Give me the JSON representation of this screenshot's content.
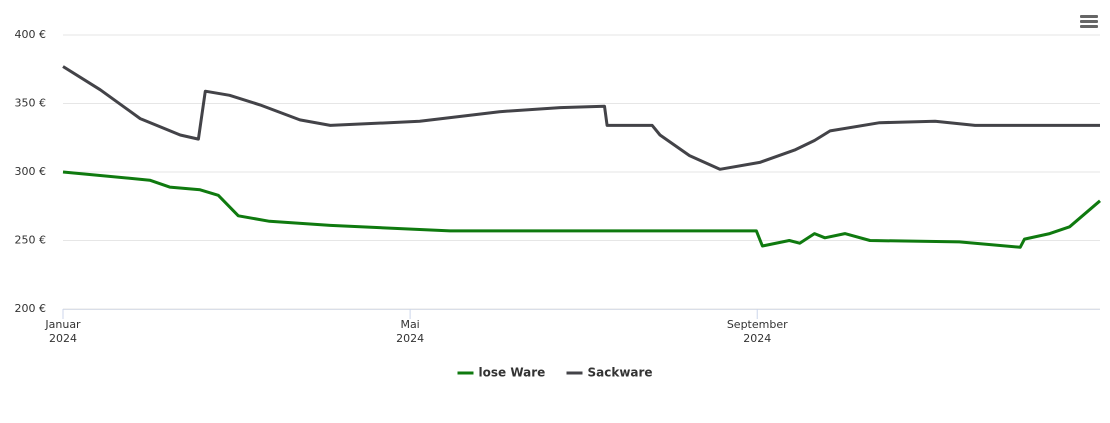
{
  "chart_data": {
    "type": "line",
    "xlim": [
      0,
      11.95
    ],
    "xticks": [
      {
        "value": 0,
        "label": "Januar 2024"
      },
      {
        "value": 4,
        "label": "Mai 2024"
      },
      {
        "value": 8,
        "label": "September 2024"
      }
    ],
    "ylim": [
      200,
      400
    ],
    "yticks": [
      {
        "value": 200,
        "label": "200 €"
      },
      {
        "value": 250,
        "label": "250 €"
      },
      {
        "value": 300,
        "label": "300 €"
      },
      {
        "value": 350,
        "label": "350 €"
      },
      {
        "value": 400,
        "label": "400 €"
      }
    ],
    "grid": true,
    "legend": "bottom",
    "series": [
      {
        "name": "lose Ware",
        "color": "#0f7a0f",
        "x": [
          0,
          1.0,
          1.23,
          1.58,
          1.79,
          2.02,
          2.38,
          3.08,
          4.46,
          6.19,
          7.99,
          8.06,
          8.37,
          8.49,
          8.66,
          8.78,
          9.01,
          9.3,
          10.33,
          11.03,
          11.08,
          11.37,
          11.6,
          11.95
        ],
        "values": [
          300,
          294,
          289,
          287,
          283,
          268,
          264,
          261,
          257,
          257,
          257,
          246,
          250,
          248,
          255,
          252,
          255,
          250,
          249,
          245,
          251,
          255,
          260,
          279
        ]
      },
      {
        "name": "Sackware",
        "color": "#434348",
        "x": [
          0,
          0.43,
          0.89,
          1.35,
          1.56,
          1.64,
          1.92,
          2.27,
          2.73,
          3.08,
          4.11,
          5.03,
          5.73,
          6.24,
          6.27,
          6.79,
          6.88,
          7.22,
          7.57,
          8.03,
          8.43,
          8.66,
          8.84,
          9.41,
          10.05,
          10.51,
          11.95
        ],
        "values": [
          377,
          360,
          339,
          327,
          324,
          359,
          356,
          349,
          338,
          334,
          337,
          344,
          347,
          348,
          334,
          334,
          327,
          312,
          302,
          307,
          316,
          323,
          330,
          336,
          337,
          334,
          334
        ]
      }
    ]
  }
}
